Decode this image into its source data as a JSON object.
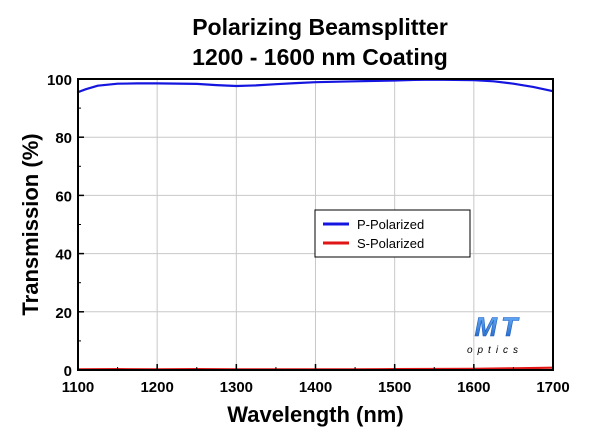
{
  "chart_data": {
    "type": "line",
    "title_lines": [
      "Polarizing Beamsplitter",
      "1200 - 1600 nm Coating"
    ],
    "xlabel": "Wavelength (nm)",
    "ylabel": "Transmission (%)",
    "xlim": [
      1100,
      1700
    ],
    "ylim": [
      0,
      100
    ],
    "xticks": [
      1100,
      1200,
      1300,
      1400,
      1500,
      1600,
      1700
    ],
    "yticks": [
      0,
      20,
      40,
      60,
      80,
      100
    ],
    "grid": true,
    "legend_position": "center-right",
    "series": [
      {
        "name": "P-Polarized",
        "color": "#1515e0",
        "x": [
          1100,
          1110,
          1125,
          1150,
          1175,
          1200,
          1250,
          1275,
          1300,
          1325,
          1350,
          1375,
          1400,
          1450,
          1500,
          1525,
          1550,
          1575,
          1600,
          1625,
          1650,
          1675,
          1700
        ],
        "y": [
          95.5,
          96.5,
          97.7,
          98.4,
          98.5,
          98.5,
          98.3,
          97.9,
          97.6,
          97.8,
          98.2,
          98.6,
          98.9,
          99.2,
          99.5,
          99.7,
          99.8,
          99.7,
          99.6,
          99.2,
          98.4,
          97.3,
          95.8
        ]
      },
      {
        "name": "S-Polarized",
        "color": "#e01515",
        "x": [
          1100,
          1150,
          1200,
          1250,
          1300,
          1350,
          1400,
          1450,
          1500,
          1550,
          1600,
          1650,
          1700
        ],
        "y": [
          0.2,
          0.3,
          0.2,
          0.3,
          0.25,
          0.2,
          0.2,
          0.25,
          0.3,
          0.35,
          0.4,
          0.6,
          0.8
        ]
      }
    ],
    "logo": {
      "top": "MT",
      "bottom": "optics",
      "color": "#1e62c0"
    }
  }
}
